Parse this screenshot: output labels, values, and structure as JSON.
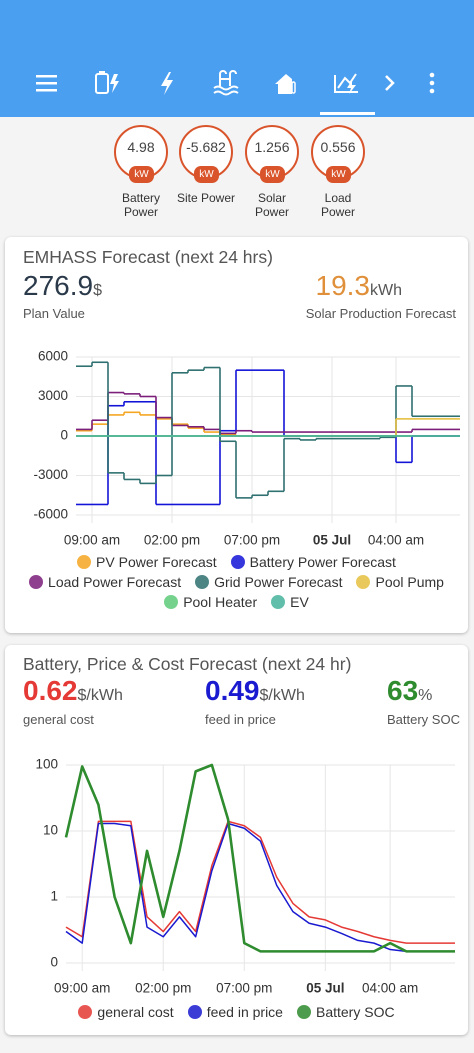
{
  "gauges": [
    {
      "value": 4.98,
      "unit": "kW",
      "label": "Battery Power"
    },
    {
      "value": -5.682,
      "unit": "kW",
      "label": "Site Power"
    },
    {
      "value": 1.256,
      "unit": "kW",
      "label": "Solar Power"
    },
    {
      "value": 0.556,
      "unit": "kW",
      "label": "Load Power"
    }
  ],
  "forecast_card": {
    "title": "EMHASS Forecast (next 24 hrs)",
    "plan_value": "276.9",
    "plan_unit": "$",
    "plan_label": "Plan Value",
    "solar_value": "19.3",
    "solar_unit": "kWh",
    "solar_label": "Solar Production Forecast",
    "chart_data": {
      "type": "step",
      "x": [
        8,
        9,
        10,
        11,
        12,
        13,
        14,
        15,
        16,
        17,
        18,
        19,
        20,
        21,
        22,
        23,
        24,
        25,
        26,
        27,
        28,
        29,
        30,
        31
      ],
      "xlim": [
        8,
        32
      ],
      "xticks": [
        {
          "value": 9,
          "label": "09:00 am"
        },
        {
          "value": 14,
          "label": "02:00 pm"
        },
        {
          "value": 19,
          "label": "07:00 pm"
        },
        {
          "value": 24,
          "label": "05 Jul"
        },
        {
          "value": 28,
          "label": "04:00 am"
        }
      ],
      "ylim": [
        -6000,
        6000
      ],
      "yticks": [
        6000,
        3000,
        0,
        -3000,
        -6000
      ],
      "grid": true,
      "series": [
        {
          "name": "PV Power Forecast",
          "color": "#f5a623",
          "values": [
            400,
            900,
            1600,
            1800,
            1600,
            1300,
            900,
            600,
            300,
            100,
            0,
            0,
            0,
            0,
            0,
            0,
            0,
            0,
            0,
            0,
            0,
            0,
            0,
            0
          ]
        },
        {
          "name": "Battery Power Forecast",
          "color": "#1414d8",
          "values": [
            -5200,
            -5200,
            2300,
            2600,
            2600,
            -5200,
            -5200,
            -5200,
            -5200,
            400,
            5000,
            5000,
            5000,
            0,
            0,
            0,
            0,
            0,
            0,
            0,
            -2000,
            0,
            0,
            0
          ]
        },
        {
          "name": "Load Power Forecast",
          "color": "#7b1f7b",
          "values": [
            500,
            1200,
            3300,
            3200,
            3000,
            1400,
            800,
            700,
            500,
            200,
            400,
            300,
            300,
            300,
            300,
            300,
            300,
            300,
            300,
            300,
            300,
            500,
            500,
            500
          ]
        },
        {
          "name": "Grid Power Forecast",
          "color": "#2f7070",
          "values": [
            5300,
            5600,
            -2800,
            -3300,
            -3600,
            -3000,
            4800,
            5000,
            5200,
            -400,
            -4700,
            -4500,
            -4200,
            -200,
            -300,
            -200,
            -200,
            -200,
            -200,
            -100,
            3800,
            1500,
            1500,
            1500
          ]
        },
        {
          "name": "Pool Pump",
          "color": "#e6c040",
          "values": [
            0,
            0,
            0,
            0,
            0,
            0,
            0,
            0,
            0,
            0,
            0,
            0,
            0,
            0,
            0,
            0,
            0,
            0,
            0,
            0,
            1300,
            1300,
            1300,
            1300
          ]
        },
        {
          "name": "Pool Heater",
          "color": "#5ecb7a",
          "values": [
            0,
            0,
            0,
            0,
            0,
            0,
            0,
            0,
            0,
            0,
            0,
            0,
            0,
            0,
            0,
            0,
            0,
            0,
            0,
            0,
            0,
            0,
            0,
            0
          ]
        },
        {
          "name": "EV",
          "color": "#45b39d",
          "values": [
            0,
            0,
            0,
            0,
            0,
            0,
            0,
            0,
            0,
            0,
            0,
            0,
            0,
            0,
            0,
            0,
            0,
            0,
            0,
            0,
            0,
            0,
            0,
            0
          ]
        }
      ]
    }
  },
  "cost_card": {
    "title": "Battery, Price & Cost Forecast (next 24 hr)",
    "stats": [
      {
        "value": "0.62",
        "unit": "$/kWh",
        "label": "general cost",
        "color": "#e53935"
      },
      {
        "value": "0.49",
        "unit": "$/kWh",
        "label": "feed in price",
        "color": "#1a1ad0"
      },
      {
        "value": "63",
        "unit": "%",
        "label": "Battery SOC",
        "color": "#2e8b2e"
      }
    ],
    "chart_data": {
      "type": "line",
      "x": [
        8,
        9,
        10,
        11,
        12,
        13,
        14,
        15,
        16,
        17,
        18,
        19,
        20,
        21,
        22,
        23,
        24,
        25,
        26,
        27,
        28,
        29,
        30,
        31,
        32
      ],
      "xlim": [
        8,
        32
      ],
      "xticks": [
        {
          "value": 9,
          "label": "09:00 am"
        },
        {
          "value": 14,
          "label": "02:00 pm"
        },
        {
          "value": 19,
          "label": "07:00 pm"
        },
        {
          "value": 24,
          "label": "05 Jul"
        },
        {
          "value": 28,
          "label": "04:00 am"
        }
      ],
      "ylim": [
        0.1,
        100
      ],
      "log_scale": true,
      "yticks": [
        100,
        10,
        1,
        {
          "value": 0.1,
          "label": "0"
        }
      ],
      "grid": true,
      "series": [
        {
          "name": "general cost",
          "color": "#e53935",
          "values": [
            0.35,
            0.25,
            14,
            14,
            14,
            0.5,
            0.3,
            0.6,
            0.3,
            3,
            14,
            12,
            8,
            2,
            0.8,
            0.5,
            0.45,
            0.35,
            0.3,
            0.25,
            0.22,
            0.2,
            0.2,
            0.2,
            0.2
          ]
        },
        {
          "name": "feed in price",
          "color": "#1a1ad0",
          "values": [
            0.3,
            0.2,
            13,
            13,
            12,
            0.35,
            0.25,
            0.5,
            0.25,
            2.5,
            13,
            11,
            7,
            1.5,
            0.6,
            0.4,
            0.35,
            0.28,
            0.22,
            0.2,
            0.16,
            0.15,
            0.15,
            0.15,
            0.15
          ]
        },
        {
          "name": "Battery SOC",
          "color": "#2e8b2e",
          "values": [
            8,
            95,
            25,
            1,
            0.2,
            5,
            0.5,
            5,
            80,
            100,
            15,
            0.2,
            0.15,
            0.15,
            0.15,
            0.15,
            0.15,
            0.15,
            0.15,
            0.15,
            0.2,
            0.15,
            0.15,
            0.15,
            0.15
          ]
        }
      ]
    }
  }
}
